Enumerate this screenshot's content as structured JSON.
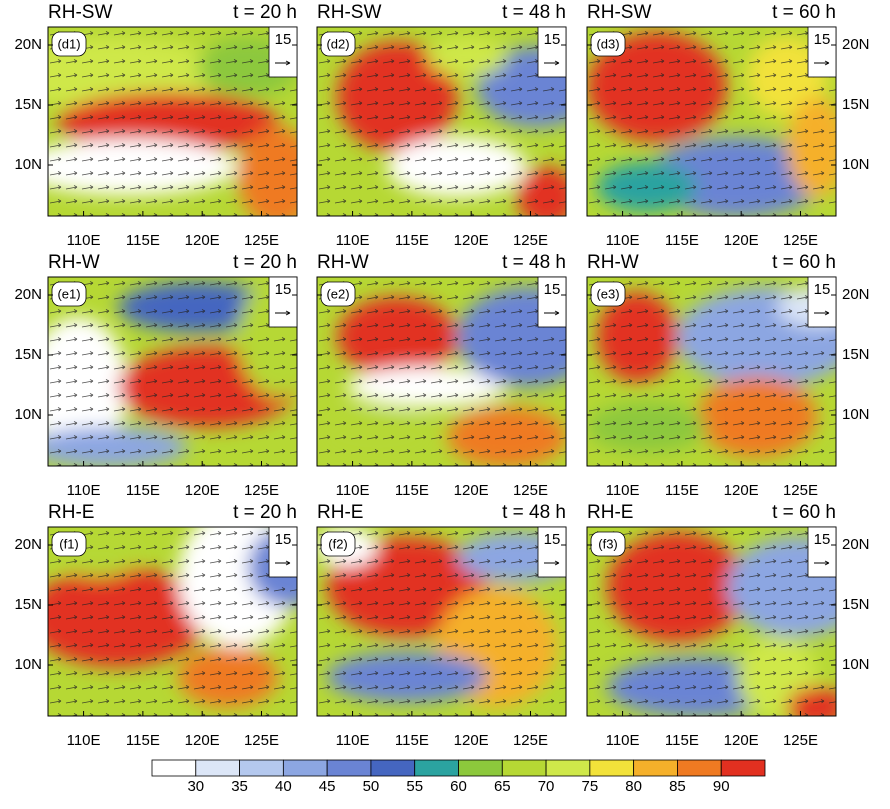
{
  "panels": [
    {
      "experiment": "RH-SW",
      "time": "t = 20 h",
      "label": "(d1)",
      "reference": "15"
    },
    {
      "experiment": "RH-SW",
      "time": "t = 48 h",
      "label": "(d2)",
      "reference": "15"
    },
    {
      "experiment": "RH-SW",
      "time": "t = 60 h",
      "label": "(d3)",
      "reference": "15"
    },
    {
      "experiment": "RH-W",
      "time": "t = 20 h",
      "label": "(e1)",
      "reference": "15"
    },
    {
      "experiment": "RH-W",
      "time": "t = 48 h",
      "label": "(e2)",
      "reference": "15"
    },
    {
      "experiment": "RH-W",
      "time": "t = 60 h",
      "label": "(e3)",
      "reference": "15"
    },
    {
      "experiment": "RH-E",
      "time": "t = 20 h",
      "label": "(f1)",
      "reference": "15"
    },
    {
      "experiment": "RH-E",
      "time": "t = 48 h",
      "label": "(f2)",
      "reference": "15"
    },
    {
      "experiment": "RH-E",
      "time": "t = 60 h",
      "label": "(f3)",
      "reference": "15"
    }
  ],
  "x_ticks": [
    "110E",
    "115E",
    "120E",
    "125E"
  ],
  "y_ticks": [
    "20N",
    "15N",
    "10N"
  ],
  "colorbar": {
    "labels": [
      30,
      35,
      40,
      45,
      50,
      55,
      60,
      65,
      70,
      75,
      80,
      85,
      90
    ],
    "colors": [
      "#ffffff",
      "#dce6f7",
      "#b4c8ee",
      "#8ca6e2",
      "#6a84d4",
      "#4566c0",
      "#2ba3a0",
      "#8cc83c",
      "#b6d834",
      "#cfe84a",
      "#f2e23a",
      "#f5b02a",
      "#ef7a22",
      "#e23020"
    ]
  }
}
